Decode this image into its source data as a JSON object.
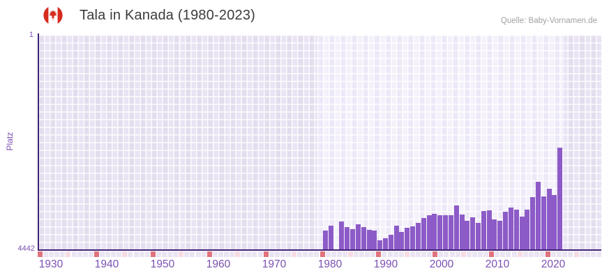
{
  "header": {
    "title": "Tala in Kanada (1980-2023)",
    "source": "Quelle: Baby-Vornamen.de",
    "flag_icon": "canada-flag-icon"
  },
  "chart_data": {
    "type": "bar",
    "title": "Tala in Kanada (1980-2023)",
    "ylabel": "Platz",
    "xlabel": "",
    "y_axis": {
      "top_tick": "1",
      "bottom_tick": "4442",
      "min": 1,
      "max": 4442,
      "inverted": true
    },
    "x_tick_labels": [
      "1930",
      "1940",
      "1950",
      "1960",
      "1970",
      "1980",
      "1990",
      "2000",
      "2010",
      "2020"
    ],
    "grid": true,
    "legend_position": "none",
    "highlight_band_years": [
      1979,
      2024
    ],
    "missing_years": [
      1982
    ],
    "categories": [
      1980,
      1981,
      1982,
      1983,
      1984,
      1985,
      1986,
      1987,
      1988,
      1989,
      1990,
      1991,
      1992,
      1993,
      1994,
      1995,
      1996,
      1997,
      1998,
      1999,
      2000,
      2001,
      2002,
      2003,
      2004,
      2005,
      2006,
      2007,
      2008,
      2009,
      2010,
      2011,
      2012,
      2013,
      2014,
      2015,
      2016,
      2017,
      2018,
      2019,
      2020,
      2021,
      2022,
      2023
    ],
    "values": [
      4050,
      3950,
      null,
      3865,
      3980,
      4025,
      3920,
      3980,
      4035,
      4050,
      4260,
      4210,
      4140,
      3950,
      4075,
      3995,
      3965,
      3895,
      3790,
      3735,
      3710,
      3740,
      3740,
      3740,
      3540,
      3715,
      3855,
      3780,
      3890,
      3650,
      3635,
      3815,
      3845,
      3660,
      3575,
      3620,
      3765,
      3620,
      3360,
      3045,
      3345,
      3185,
      3315,
      2335
    ],
    "colors": {
      "bar": "#8d5bc7",
      "axis_line": "#3f2376",
      "tick_label": "#7b50b2",
      "plot_bg_outer": "#e6e0f0",
      "plot_bg_band": "#f1edf9",
      "strip_decade": "#e0737e",
      "strip_half_decade": "#f6dbe3",
      "strip_default": "#eae4f3",
      "flag_red": "#d52b1e"
    }
  }
}
